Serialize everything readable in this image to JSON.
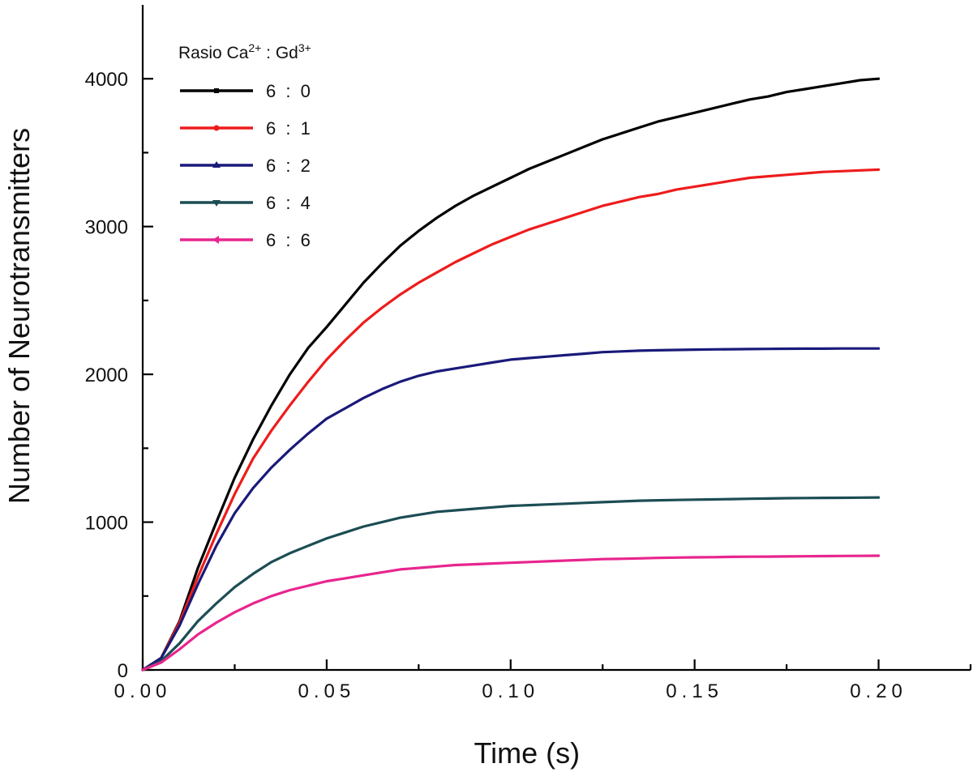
{
  "chart_data": {
    "type": "line",
    "xlabel": "Time (s)",
    "ylabel": "Number of Neurotransmitters",
    "xlim": [
      0,
      0.225
    ],
    "ylim": [
      0,
      4500
    ],
    "x_ticks": [
      0.0,
      0.05,
      0.1,
      0.15,
      0.2
    ],
    "x_tick_labels": [
      "0.00",
      "0.05",
      "0.10",
      "0.15",
      "0.20"
    ],
    "y_ticks": [
      0,
      1000,
      2000,
      3000,
      4000
    ],
    "y_tick_labels": [
      "0",
      "1000",
      "2000",
      "3000",
      "4000"
    ],
    "legend": {
      "title_parts": [
        "Rasio Ca",
        "2+",
        " : Gd",
        "3+"
      ],
      "placement": "top-left"
    },
    "x": [
      0,
      0.005,
      0.01,
      0.015,
      0.02,
      0.025,
      0.03,
      0.035,
      0.04,
      0.045,
      0.05,
      0.055,
      0.06,
      0.065,
      0.07,
      0.075,
      0.08,
      0.085,
      0.09,
      0.095,
      0.1,
      0.105,
      0.11,
      0.115,
      0.12,
      0.125,
      0.13,
      0.135,
      0.14,
      0.145,
      0.15,
      0.155,
      0.16,
      0.165,
      0.17,
      0.175,
      0.18,
      0.185,
      0.19,
      0.195,
      0.2
    ],
    "series": [
      {
        "name": "6 : 0",
        "color": "#000000",
        "values": [
          0,
          80,
          330,
          690,
          1000,
          1300,
          1560,
          1790,
          2000,
          2180,
          2320,
          2470,
          2620,
          2750,
          2870,
          2970,
          3060,
          3140,
          3210,
          3270,
          3330,
          3390,
          3440,
          3490,
          3540,
          3590,
          3630,
          3670,
          3710,
          3740,
          3770,
          3800,
          3830,
          3860,
          3880,
          3910,
          3930,
          3950,
          3970,
          3990,
          4000
        ]
      },
      {
        "name": "6 : 1",
        "color": "#ee1c1c",
        "values": [
          0,
          80,
          320,
          630,
          920,
          1190,
          1430,
          1620,
          1790,
          1950,
          2100,
          2230,
          2350,
          2450,
          2540,
          2620,
          2690,
          2760,
          2820,
          2880,
          2930,
          2980,
          3020,
          3060,
          3100,
          3140,
          3170,
          3200,
          3220,
          3250,
          3270,
          3290,
          3310,
          3330,
          3340,
          3350,
          3360,
          3370,
          3375,
          3380,
          3385
        ]
      },
      {
        "name": "6 : 2",
        "color": "#1a1a7a",
        "values": [
          0,
          80,
          300,
          580,
          840,
          1060,
          1230,
          1370,
          1490,
          1600,
          1700,
          1770,
          1840,
          1900,
          1950,
          1990,
          2020,
          2040,
          2060,
          2080,
          2100,
          2110,
          2120,
          2130,
          2140,
          2150,
          2155,
          2160,
          2163,
          2165,
          2167,
          2169,
          2170,
          2171,
          2172,
          2173,
          2174,
          2174,
          2175,
          2175,
          2175
        ]
      },
      {
        "name": "6 : 4",
        "color": "#1c4d54",
        "values": [
          0,
          60,
          180,
          330,
          450,
          560,
          650,
          730,
          790,
          840,
          890,
          930,
          970,
          1000,
          1030,
          1050,
          1070,
          1080,
          1090,
          1100,
          1110,
          1115,
          1120,
          1125,
          1130,
          1135,
          1140,
          1145,
          1148,
          1150,
          1152,
          1154,
          1156,
          1158,
          1160,
          1162,
          1163,
          1164,
          1165,
          1166,
          1167
        ]
      },
      {
        "name": "6 : 6",
        "color": "#e8258e",
        "values": [
          0,
          50,
          140,
          240,
          320,
          390,
          450,
          500,
          540,
          570,
          600,
          620,
          640,
          660,
          680,
          690,
          700,
          710,
          715,
          720,
          725,
          730,
          735,
          740,
          745,
          750,
          752,
          755,
          758,
          760,
          762,
          763,
          765,
          766,
          767,
          768,
          769,
          770,
          771,
          772,
          773
        ]
      }
    ]
  }
}
